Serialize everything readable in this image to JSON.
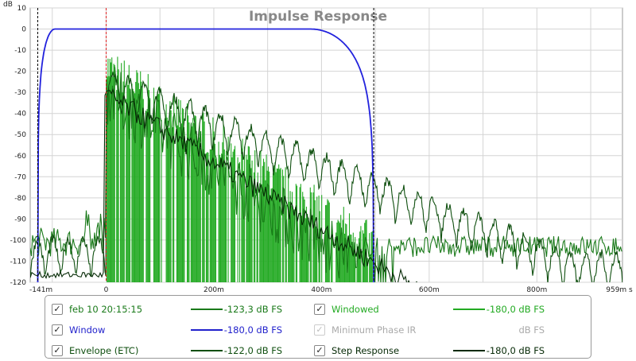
{
  "chart_data": {
    "type": "line",
    "title": "Impulse Response",
    "ylabel": "dB",
    "xlabel": "s",
    "xlim": [
      -141,
      959
    ],
    "ylim": [
      -120,
      10
    ],
    "y_ticks": [
      "10",
      "0",
      "-10",
      "-20",
      "-30",
      "-40",
      "-50",
      "-60",
      "-70",
      "-80",
      "-90",
      "-100",
      "-110",
      "-120"
    ],
    "x_ticks": [
      "-141m",
      "0",
      "200m",
      "400m",
      "600m",
      "800m",
      "959m s"
    ],
    "markers": {
      "window_left_ms": -127,
      "window_right_ms": 497,
      "peak_ms": 0
    },
    "series": [
      {
        "name": "feb 10 20:15:15",
        "color": "#1a7a1a",
        "peak_db": -17,
        "noise_floor_db": -115
      },
      {
        "name": "Window",
        "color": "#2222dd",
        "rise_start_ms": -127,
        "flat_from_ms": -95,
        "flat_to_ms": 380,
        "fall_end_ms": 497,
        "level_db": 0
      },
      {
        "name": "Envelope (ETC)",
        "color": "#0f4f0f"
      },
      {
        "name": "Windowed",
        "color": "#22aa22"
      },
      {
        "name": "Step Response",
        "color": "#062a06"
      }
    ]
  },
  "legend": {
    "items": [
      {
        "label": "feb 10 20:15:15",
        "value": "-123,3 dB FS",
        "color": "#1a7a1a",
        "checked": "✓"
      },
      {
        "label": "Window",
        "value": "-180,0 dB FS",
        "color": "#2222cc",
        "checked": "✓"
      },
      {
        "label": "Envelope (ETC)",
        "value": "-122,0 dB FS",
        "color": "#0f4f0f",
        "checked": "✓"
      },
      {
        "label": "Windowed",
        "value": "-180,0 dB FS",
        "color": "#22aa22",
        "checked": "✓"
      },
      {
        "label": "Minimum Phase IR",
        "value": "dB FS",
        "color": "#aaaaaa",
        "checked": "✓"
      },
      {
        "label": "Step Response",
        "value": "-180,0 dB FS",
        "color": "#062a06",
        "checked": "✓"
      }
    ]
  }
}
